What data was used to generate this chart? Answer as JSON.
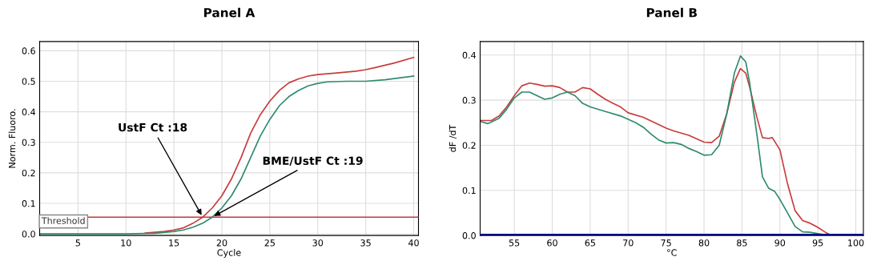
{
  "chart_data": [
    {
      "type": "line",
      "title": "Panel A",
      "xlabel": "Cycle",
      "ylabel": "Norm. Fluoro.",
      "xlim": [
        1,
        40.5
      ],
      "ylim": [
        -0.005,
        0.63
      ],
      "xticks": [
        5,
        10,
        15,
        20,
        25,
        30,
        35,
        40
      ],
      "yticks": [
        {
          "value": 0,
          "label": "0.0"
        },
        0.1,
        0.2,
        0.3,
        0.4,
        0.5,
        0.6
      ],
      "grid": true,
      "legend": false,
      "marker": "none",
      "line_style": "solid",
      "ref_lines": [
        {
          "axis": "y",
          "value": 0.055,
          "label": "Threshold",
          "color": "#c0393b"
        }
      ],
      "annotations": [
        {
          "text": "UstF Ct :18",
          "x": 18,
          "y": 0.055
        },
        {
          "text": "BME/UstF Ct :19",
          "x": 19,
          "y": 0.055
        }
      ],
      "series": [
        {
          "color": "#c83c3c",
          "x": [
            12,
            14,
            15,
            16,
            17,
            18,
            19,
            20,
            21,
            22,
            23,
            24,
            25,
            26,
            27,
            28,
            29,
            30,
            32,
            34,
            35,
            36,
            38,
            40
          ],
          "values": [
            0.003,
            0.008,
            0.013,
            0.02,
            0.035,
            0.055,
            0.085,
            0.125,
            0.18,
            0.25,
            0.33,
            0.39,
            0.435,
            0.47,
            0.495,
            0.508,
            0.517,
            0.522,
            0.527,
            0.533,
            0.538,
            0.545,
            0.56,
            0.578
          ]
        },
        {
          "color": "#2e8b6e",
          "x": [
            1,
            10,
            13,
            15,
            16,
            17,
            18,
            19,
            20,
            21,
            22,
            23,
            24,
            25,
            26,
            27,
            28,
            29,
            30,
            31,
            33,
            35,
            37,
            40
          ],
          "values": [
            0,
            0,
            0.002,
            0.008,
            0.013,
            0.022,
            0.035,
            0.055,
            0.085,
            0.125,
            0.18,
            0.25,
            0.32,
            0.375,
            0.42,
            0.45,
            0.47,
            0.485,
            0.493,
            0.498,
            0.5,
            0.5,
            0.505,
            0.517
          ]
        }
      ]
    },
    {
      "type": "line",
      "title": "Panel B",
      "xlabel": "°C",
      "ylabel": "dF /dT",
      "xlim": [
        50.5,
        101
      ],
      "ylim": [
        0,
        0.43
      ],
      "xticks": [
        55,
        60,
        65,
        70,
        75,
        80,
        85,
        90,
        95,
        100
      ],
      "yticks": [
        {
          "value": 0,
          "label": "0.0"
        },
        0.1,
        0.2,
        0.3,
        0.4
      ],
      "grid": true,
      "legend": false,
      "marker": "none",
      "line_style": "solid",
      "ref_lines": [
        {
          "axis": "y",
          "value": 0,
          "color": "#000080"
        }
      ],
      "series": [
        {
          "color": "#c83c3c",
          "x": [
            50.5,
            52,
            53,
            54,
            55,
            56,
            57,
            58,
            59,
            60,
            61,
            62,
            63,
            64,
            65,
            66,
            67,
            68,
            69,
            70,
            72,
            74,
            75,
            76,
            78,
            80,
            81,
            82,
            83,
            84,
            84.8,
            85.5,
            86,
            87,
            87.7,
            88.5,
            89,
            90,
            91,
            92,
            93,
            94,
            95,
            96,
            96.8
          ],
          "values": [
            0.255,
            0.255,
            0.265,
            0.285,
            0.31,
            0.332,
            0.338,
            0.335,
            0.331,
            0.332,
            0.328,
            0.318,
            0.318,
            0.328,
            0.325,
            0.313,
            0.302,
            0.293,
            0.285,
            0.272,
            0.262,
            0.246,
            0.238,
            0.232,
            0.222,
            0.207,
            0.206,
            0.22,
            0.27,
            0.34,
            0.37,
            0.36,
            0.33,
            0.26,
            0.217,
            0.215,
            0.217,
            0.19,
            0.115,
            0.055,
            0.033,
            0.027,
            0.018,
            0.007,
            0
          ]
        },
        {
          "color": "#2e8b6e",
          "x": [
            50.5,
            51.5,
            53,
            54,
            55,
            56,
            57,
            58,
            59,
            60,
            61,
            62,
            63,
            64,
            65,
            67,
            69,
            71,
            72,
            73,
            74,
            75,
            76,
            77,
            78,
            79,
            80,
            81,
            82,
            83,
            84,
            84.8,
            85.5,
            86,
            87,
            87.7,
            88.5,
            89.3,
            90,
            91,
            92,
            93,
            94,
            95,
            96.5
          ],
          "values": [
            0.253,
            0.248,
            0.26,
            0.28,
            0.305,
            0.318,
            0.318,
            0.31,
            0.302,
            0.305,
            0.313,
            0.318,
            0.31,
            0.293,
            0.285,
            0.275,
            0.265,
            0.25,
            0.24,
            0.225,
            0.212,
            0.205,
            0.206,
            0.202,
            0.193,
            0.186,
            0.178,
            0.179,
            0.2,
            0.27,
            0.36,
            0.398,
            0.385,
            0.34,
            0.22,
            0.13,
            0.105,
            0.098,
            0.08,
            0.05,
            0.02,
            0.008,
            0.007,
            0.004,
            0
          ]
        }
      ]
    }
  ]
}
